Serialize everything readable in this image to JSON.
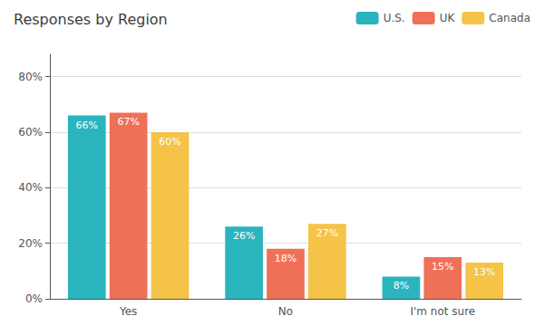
{
  "chart_data": {
    "type": "bar",
    "title": "Responses by Region",
    "categories": [
      "Yes",
      "No",
      "I'm not sure"
    ],
    "series": [
      {
        "name": "U.S.",
        "color": "#2ab5be",
        "values": [
          66,
          26,
          8
        ],
        "value_labels": [
          "66%",
          "26%",
          "8%"
        ]
      },
      {
        "name": "UK",
        "color": "#f07057",
        "values": [
          67,
          18,
          15
        ],
        "value_labels": [
          "67%",
          "18%",
          "15%"
        ]
      },
      {
        "name": "Canada",
        "color": "#f5c347",
        "values": [
          60,
          27,
          13
        ],
        "value_labels": [
          "60%",
          "27%",
          "13%"
        ]
      }
    ],
    "ylim": [
      0,
      88
    ],
    "yticks": [
      {
        "value": 0,
        "label": "0%"
      },
      {
        "value": 20,
        "label": "20%"
      },
      {
        "value": 40,
        "label": "40%"
      },
      {
        "value": 60,
        "label": "60%"
      },
      {
        "value": 80,
        "label": "80%"
      }
    ],
    "grid": true,
    "legend": "upper right",
    "data_labels": true
  }
}
